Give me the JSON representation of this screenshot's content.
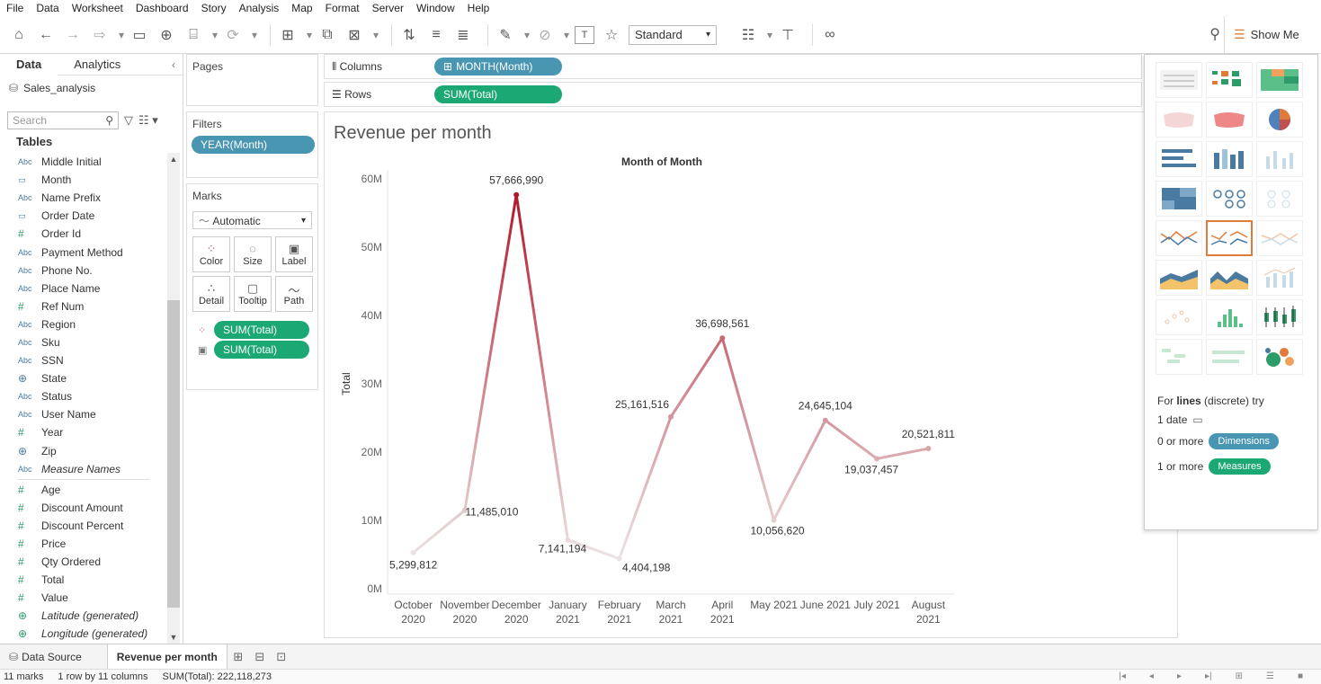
{
  "menu": [
    "File",
    "Data",
    "Worksheet",
    "Dashboard",
    "Story",
    "Analysis",
    "Map",
    "Format",
    "Server",
    "Window",
    "Help"
  ],
  "toolbar": {
    "fit_value": "Standard",
    "show_me_label": "Show Me"
  },
  "data_pane": {
    "tabs": [
      "Data",
      "Analytics"
    ],
    "datasource": "Sales_analysis",
    "search_placeholder": "Search",
    "tables_heading": "Tables",
    "dimensions": [
      {
        "type": "Abc",
        "name": "Middle Initial"
      },
      {
        "type": "date",
        "name": "Month"
      },
      {
        "type": "Abc",
        "name": "Name Prefix"
      },
      {
        "type": "date",
        "name": "Order Date"
      },
      {
        "type": "#",
        "name": "Order Id"
      },
      {
        "type": "Abc",
        "name": "Payment Method"
      },
      {
        "type": "Abc",
        "name": "Phone No."
      },
      {
        "type": "Abc",
        "name": "Place Name"
      },
      {
        "type": "#",
        "name": "Ref Num"
      },
      {
        "type": "Abc",
        "name": "Region"
      },
      {
        "type": "Abc",
        "name": "Sku"
      },
      {
        "type": "Abc",
        "name": "SSN"
      },
      {
        "type": "geo",
        "name": "State"
      },
      {
        "type": "Abc",
        "name": "Status"
      },
      {
        "type": "Abc",
        "name": "User Name"
      },
      {
        "type": "#",
        "name": "Year"
      },
      {
        "type": "geo",
        "name": "Zip"
      },
      {
        "type": "Abc",
        "name": "Measure Names",
        "italic": true
      }
    ],
    "measures": [
      {
        "type": "#",
        "name": "Age"
      },
      {
        "type": "#",
        "name": "Discount Amount"
      },
      {
        "type": "#",
        "name": "Discount Percent"
      },
      {
        "type": "#",
        "name": "Price"
      },
      {
        "type": "#",
        "name": "Qty Ordered"
      },
      {
        "type": "#",
        "name": "Total"
      },
      {
        "type": "#",
        "name": "Value"
      },
      {
        "type": "geo",
        "name": "Latitude (generated)",
        "italic": true
      },
      {
        "type": "geo",
        "name": "Longitude (generated)",
        "italic": true
      }
    ]
  },
  "cards": {
    "pages_title": "Pages",
    "filters_title": "Filters",
    "filter_pill": "YEAR(Month)",
    "marks_title": "Marks",
    "marks_type": "Automatic",
    "marks_buttons": [
      "Color",
      "Size",
      "Label",
      "Detail",
      "Tooltip",
      "Path"
    ],
    "marks_pills": [
      "SUM(Total)",
      "SUM(Total)"
    ]
  },
  "shelves": {
    "columns_label": "Columns",
    "columns_pill": "MONTH(Month)",
    "rows_label": "Rows",
    "rows_pill": "SUM(Total)"
  },
  "view": {
    "title": "Revenue per month",
    "header_label": "Month of Month"
  },
  "chart_data": {
    "type": "line",
    "title": "Revenue per month",
    "xlabel": "Month of Month",
    "ylabel": "Total",
    "categories": [
      [
        "October",
        "2020"
      ],
      [
        "November",
        "2020"
      ],
      [
        "December",
        "2020"
      ],
      [
        "January",
        "2021"
      ],
      [
        "February",
        "2021"
      ],
      [
        "March",
        "2021"
      ],
      [
        "April",
        "2021"
      ],
      [
        "May 2021",
        ""
      ],
      [
        "June 2021",
        ""
      ],
      [
        "July 2021",
        ""
      ],
      [
        "August",
        "2021"
      ]
    ],
    "values": [
      5299812,
      11485010,
      57666990,
      7141194,
      4404198,
      25161516,
      36698561,
      10056620,
      24645104,
      19037457,
      20521811
    ],
    "labels": [
      "5,299,812",
      "11,485,010",
      "57,666,990",
      "7,141,194",
      "4,404,198",
      "25,161,516",
      "36,698,561",
      "10,056,620",
      "24,645,104",
      "19,037,457",
      "20,521,811"
    ],
    "y_ticks": [
      {
        "value": 0,
        "label": "0M"
      },
      {
        "value": 10000000,
        "label": "10M"
      },
      {
        "value": 20000000,
        "label": "20M"
      },
      {
        "value": 30000000,
        "label": "30M"
      },
      {
        "value": 40000000,
        "label": "40M"
      },
      {
        "value": 50000000,
        "label": "50M"
      },
      {
        "value": 60000000,
        "label": "60M"
      }
    ],
    "ylim": [
      0,
      60000000
    ],
    "color_low": "#ebe4e4",
    "color_high": "#b2182b",
    "grid": false
  },
  "show_me": {
    "hint_prefix": "For ",
    "hint_bold": "lines",
    "hint_suffix": " (discrete) try",
    "req_date": "1 date",
    "req_dims_prefix": "0 or more",
    "req_dims_pill": "Dimensions",
    "req_meas_prefix": "1 or more",
    "req_meas_pill": "Measures"
  },
  "sheet_tabs": {
    "datasource_tab": "Data Source",
    "active_tab": "Revenue per month"
  },
  "status": {
    "marks": "11 marks",
    "dims": "1 row by 11 columns",
    "sum": "SUM(Total): 222,118,273"
  }
}
